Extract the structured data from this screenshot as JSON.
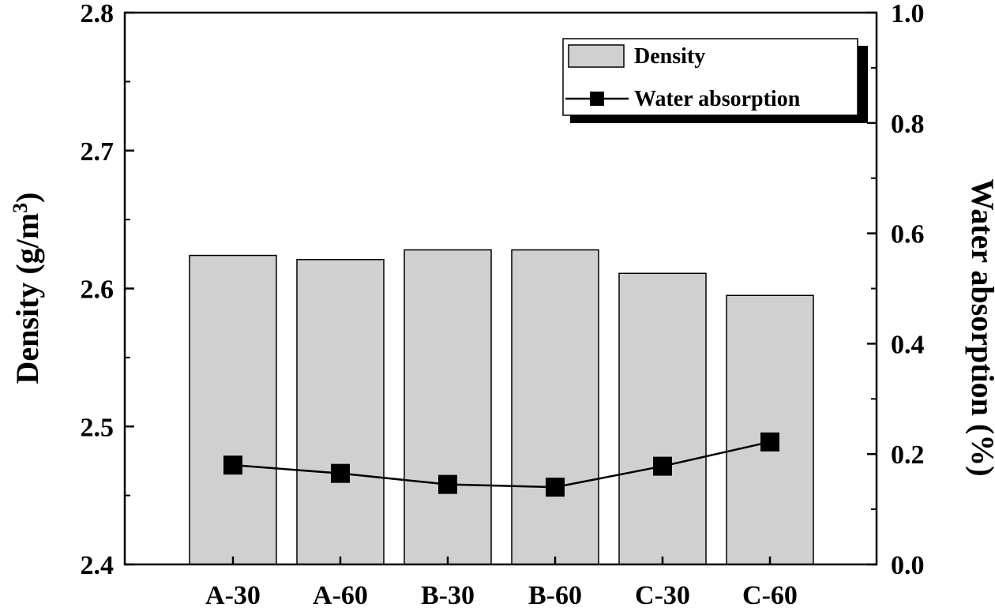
{
  "chart_data": {
    "type": "bar",
    "categories": [
      "A-30",
      "A-60",
      "B-30",
      "B-60",
      "C-30",
      "C-60"
    ],
    "series": [
      {
        "name": "Density",
        "kind": "bar",
        "axis": "left",
        "values": [
          2.624,
          2.621,
          2.628,
          2.628,
          2.611,
          2.595
        ],
        "color": "#d0d0d0"
      },
      {
        "name": "Water absorption",
        "kind": "line",
        "axis": "right",
        "marker": "square",
        "values": [
          0.18,
          0.165,
          0.145,
          0.14,
          0.178,
          0.222
        ],
        "color": "#000000"
      }
    ],
    "ylabel": "Density (g/m",
    "ylabel_sup": "3",
    "ylabel_close": ")",
    "y2label": "Water absorption (%)",
    "ylim": [
      2.4,
      2.8
    ],
    "y2lim": [
      0.0,
      1.0
    ],
    "yticks": [
      "2.4",
      "2.5",
      "2.6",
      "2.7",
      "2.8"
    ],
    "y2ticks": [
      "0.0",
      "0.2",
      "0.4",
      "0.6",
      "0.8",
      "1.0"
    ],
    "legend_position": "top-right",
    "grid": false
  }
}
